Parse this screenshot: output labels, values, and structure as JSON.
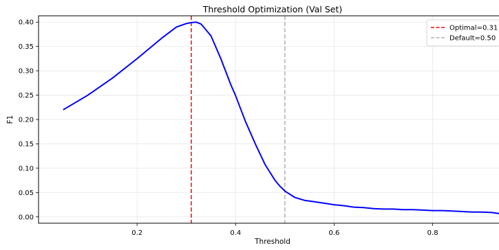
{
  "chart_data": {
    "type": "line",
    "title": "Threshold Optimization (Val Set)",
    "xlabel": "Threshold",
    "ylabel": "F1",
    "xlim": [
      0.0,
      0.95
    ],
    "ylim": [
      -0.013,
      0.413
    ],
    "x_ticks": [
      0.2,
      0.4,
      0.6,
      0.8
    ],
    "x_tick_labels": [
      "0.2",
      "0.4",
      "0.6",
      "0.8"
    ],
    "y_ticks": [
      0.0,
      0.05,
      0.1,
      0.15,
      0.2,
      0.25,
      0.3,
      0.35,
      0.4
    ],
    "y_tick_labels": [
      "0.00",
      "0.05",
      "0.10",
      "0.15",
      "0.20",
      "0.25",
      "0.30",
      "0.35",
      "0.40"
    ],
    "grid": true,
    "legend_position": "top-right",
    "series": [
      {
        "color": "#0000ff",
        "x": [
          0.05,
          0.1,
          0.15,
          0.2,
          0.25,
          0.28,
          0.3,
          0.31,
          0.32,
          0.33,
          0.35,
          0.37,
          0.39,
          0.4,
          0.42,
          0.44,
          0.46,
          0.48,
          0.49,
          0.5,
          0.52,
          0.54,
          0.56,
          0.58,
          0.6,
          0.62,
          0.64,
          0.66,
          0.68,
          0.7,
          0.72,
          0.74,
          0.76,
          0.78,
          0.8,
          0.82,
          0.84,
          0.86,
          0.88,
          0.9,
          0.92,
          0.94
        ],
        "y": [
          0.22,
          0.25,
          0.285,
          0.325,
          0.367,
          0.39,
          0.397,
          0.399,
          0.4,
          0.396,
          0.372,
          0.325,
          0.272,
          0.249,
          0.196,
          0.15,
          0.107,
          0.075,
          0.063,
          0.053,
          0.04,
          0.034,
          0.031,
          0.028,
          0.025,
          0.023,
          0.02,
          0.019,
          0.017,
          0.016,
          0.016,
          0.015,
          0.015,
          0.014,
          0.013,
          0.013,
          0.012,
          0.011,
          0.01,
          0.01,
          0.009,
          0.006
        ]
      }
    ],
    "reference_lines": [
      {
        "x": 0.31,
        "color": "#ff0000",
        "style": "dashed",
        "label": "Optimal=0.31"
      },
      {
        "x": 0.5,
        "color": "#b0b0b0",
        "style": "dashed",
        "label": "Default=0.50"
      }
    ]
  }
}
